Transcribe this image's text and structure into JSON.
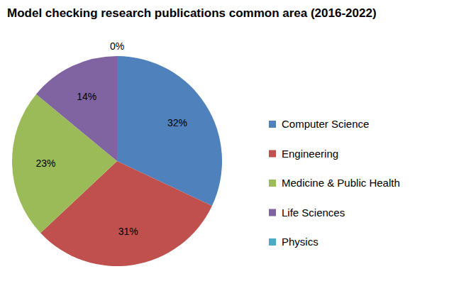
{
  "chart_data": {
    "type": "pie",
    "title": "Model checking research publications common area (2016-2022)",
    "categories": [
      "Computer Science",
      "Engineering",
      "Medicine & Public Health",
      "Life Sciences",
      "Physics"
    ],
    "values": [
      32,
      31,
      23,
      14,
      0
    ],
    "value_labels": [
      "32%",
      "31%",
      "23%",
      "14%",
      "0%"
    ],
    "colors": [
      "#4f81bd",
      "#c0504d",
      "#9bbb59",
      "#8064a2",
      "#4bacc6"
    ],
    "data_labels": true,
    "legend": "right"
  }
}
